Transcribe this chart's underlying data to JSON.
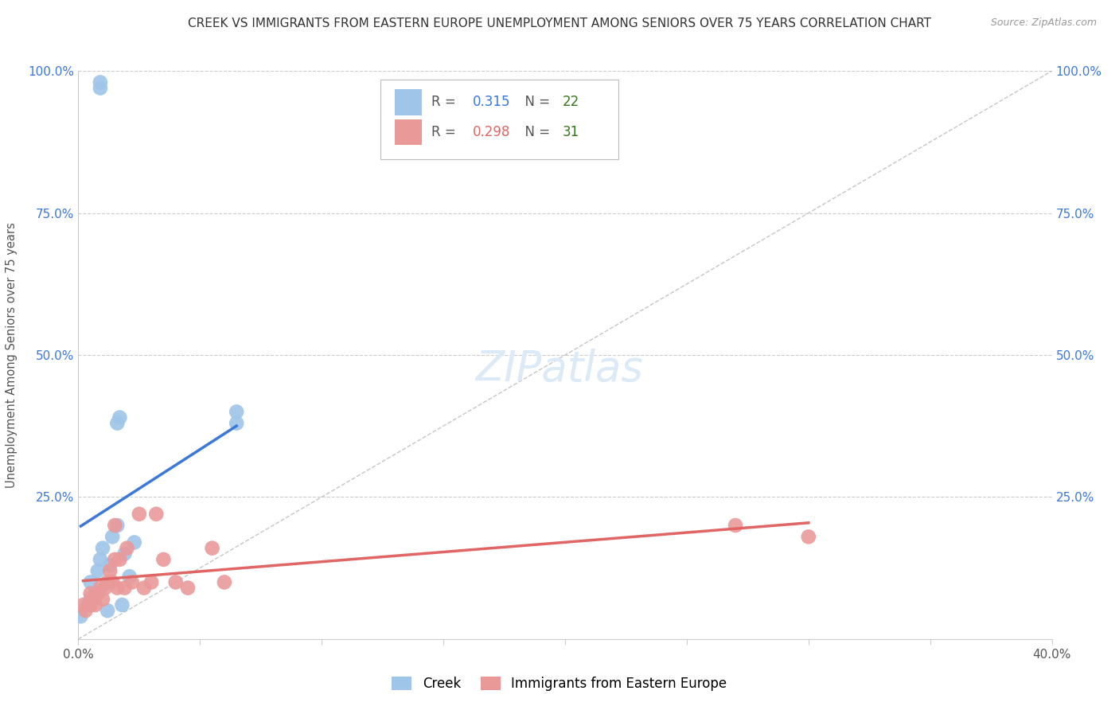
{
  "title": "CREEK VS IMMIGRANTS FROM EASTERN EUROPE UNEMPLOYMENT AMONG SENIORS OVER 75 YEARS CORRELATION CHART",
  "source": "Source: ZipAtlas.com",
  "ylabel": "Unemployment Among Seniors over 75 years",
  "xlim": [
    0.0,
    0.4
  ],
  "ylim": [
    0.0,
    1.0
  ],
  "creek_color": "#9fc5e8",
  "eastern_europe_color": "#ea9999",
  "creek_line_color": "#3c78d8",
  "eastern_europe_line_color": "#e06666",
  "diagonal_color": "#b7b7b7",
  "background_color": "#ffffff",
  "grid_color": "#cccccc",
  "tick_color": "#3c78d8",
  "creek_R": 0.315,
  "creek_N": 22,
  "eastern_R": 0.298,
  "eastern_N": 31,
  "creek_x": [
    0.009,
    0.009,
    0.001,
    0.004,
    0.005,
    0.005,
    0.007,
    0.008,
    0.009,
    0.01,
    0.012,
    0.013,
    0.014,
    0.016,
    0.016,
    0.017,
    0.018,
    0.019,
    0.021,
    0.023,
    0.065,
    0.065
  ],
  "creek_y": [
    0.97,
    0.98,
    0.04,
    0.06,
    0.07,
    0.1,
    0.08,
    0.12,
    0.14,
    0.16,
    0.05,
    0.13,
    0.18,
    0.2,
    0.38,
    0.39,
    0.06,
    0.15,
    0.11,
    0.17,
    0.38,
    0.4
  ],
  "eastern_x": [
    0.002,
    0.003,
    0.005,
    0.005,
    0.006,
    0.007,
    0.008,
    0.009,
    0.01,
    0.011,
    0.012,
    0.013,
    0.014,
    0.015,
    0.015,
    0.016,
    0.017,
    0.019,
    0.02,
    0.022,
    0.025,
    0.027,
    0.03,
    0.032,
    0.035,
    0.04,
    0.045,
    0.055,
    0.06,
    0.27,
    0.3
  ],
  "eastern_y": [
    0.06,
    0.05,
    0.06,
    0.08,
    0.07,
    0.06,
    0.08,
    0.09,
    0.07,
    0.09,
    0.1,
    0.12,
    0.1,
    0.14,
    0.2,
    0.09,
    0.14,
    0.09,
    0.16,
    0.1,
    0.22,
    0.09,
    0.1,
    0.22,
    0.14,
    0.1,
    0.09,
    0.16,
    0.1,
    0.2,
    0.18
  ]
}
